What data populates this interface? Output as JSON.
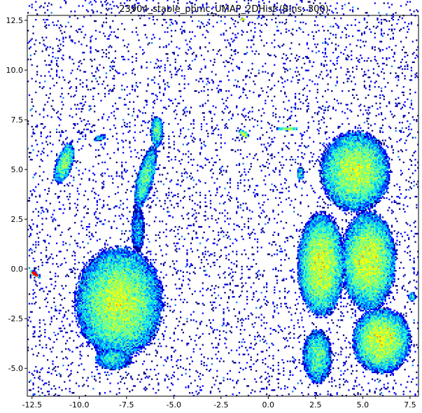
{
  "chart_data": {
    "type": "heatmap",
    "title": "23904_stable_pbmc_UMAP_2DHist (Bins: 300)",
    "xlabel": "",
    "ylabel": "",
    "xlim": [
      -12.75,
      7.95
    ],
    "ylim": [
      -6.4,
      12.75
    ],
    "x_ticks": [
      {
        "value": -12.5,
        "label": "-12.5"
      },
      {
        "value": -10.0,
        "label": "-10.0"
      },
      {
        "value": -7.5,
        "label": "-7.5"
      },
      {
        "value": -5.0,
        "label": "-5.0"
      },
      {
        "value": -2.5,
        "label": "-2.5"
      },
      {
        "value": 0.0,
        "label": "0.0"
      },
      {
        "value": 2.5,
        "label": "2.5"
      },
      {
        "value": 5.0,
        "label": "5.0"
      },
      {
        "value": 7.5,
        "label": "7.5"
      }
    ],
    "y_ticks": [
      {
        "value": 12.5,
        "label": "12.5"
      },
      {
        "value": 10.0,
        "label": "10.0"
      },
      {
        "value": 7.5,
        "label": "7.5"
      },
      {
        "value": 5.0,
        "label": "5.0"
      },
      {
        "value": 2.5,
        "label": "2.5"
      },
      {
        "value": 0.0,
        "label": "0.0"
      },
      {
        "value": -2.5,
        "label": "-2.5"
      },
      {
        "value": -5.0,
        "label": "-5.0"
      }
    ],
    "bins": 300,
    "colormap": [
      "#00007f",
      "#0000ff",
      "#007fff",
      "#00cfff",
      "#3fffbf",
      "#7fff7f",
      "#bfff3f",
      "#ffff00",
      "#ff7f00",
      "#ff0000"
    ],
    "grid": false,
    "clusters": [
      {
        "name": "small-left-island",
        "cx": -10.8,
        "cy": 5.3,
        "rx": 0.45,
        "ry": 1.1,
        "rot": -20,
        "density": 0.7
      },
      {
        "name": "tiny-left-spot",
        "cx": -8.9,
        "cy": 6.6,
        "rx": 0.35,
        "ry": 0.15,
        "rot": 20,
        "density": 0.4
      },
      {
        "name": "left-stalk-upper",
        "cx": -5.9,
        "cy": 6.9,
        "rx": 0.35,
        "ry": 0.8,
        "rot": 0,
        "density": 0.6
      },
      {
        "name": "left-stalk-mid",
        "cx": -6.5,
        "cy": 4.6,
        "rx": 0.45,
        "ry": 1.7,
        "rot": -15,
        "density": 0.6
      },
      {
        "name": "left-stalk-low",
        "cx": -6.9,
        "cy": 2.0,
        "rx": 0.35,
        "ry": 1.2,
        "rot": 0,
        "density": 0.35
      },
      {
        "name": "left-blob",
        "cx": -7.9,
        "cy": -1.7,
        "rx": 2.4,
        "ry": 2.9,
        "rot": 0,
        "density": 0.8
      },
      {
        "name": "left-blob-tail",
        "cx": -8.2,
        "cy": -4.5,
        "rx": 1.0,
        "ry": 0.6,
        "rot": 0,
        "density": 0.5
      },
      {
        "name": "edge-streak",
        "cx": -12.35,
        "cy": -0.25,
        "rx": 0.35,
        "ry": 0.1,
        "rot": -35,
        "density": 1.0
      },
      {
        "name": "center-spot",
        "cx": -1.3,
        "cy": 6.8,
        "rx": 0.3,
        "ry": 0.15,
        "rot": -30,
        "density": 0.9
      },
      {
        "name": "top-spot",
        "cx": -1.35,
        "cy": 12.55,
        "rx": 0.15,
        "ry": 0.08,
        "rot": 0,
        "density": 1.0
      },
      {
        "name": "right-top-streak",
        "cx": 1.0,
        "cy": 7.05,
        "rx": 0.6,
        "ry": 0.1,
        "rot": 0,
        "density": 0.8
      },
      {
        "name": "right-upper-large",
        "cx": 4.6,
        "cy": 4.9,
        "rx": 1.9,
        "ry": 2.1,
        "rot": 0,
        "density": 0.8
      },
      {
        "name": "right-mid-left",
        "cx": 2.8,
        "cy": 0.2,
        "rx": 1.3,
        "ry": 2.7,
        "rot": 0,
        "density": 0.85
      },
      {
        "name": "right-mid-right",
        "cx": 5.3,
        "cy": 0.4,
        "rx": 1.5,
        "ry": 2.6,
        "rot": 0,
        "density": 0.85
      },
      {
        "name": "right-lower-left",
        "cx": 2.6,
        "cy": -4.4,
        "rx": 0.8,
        "ry": 1.4,
        "rot": 0,
        "density": 0.6
      },
      {
        "name": "right-lower-right",
        "cx": 6.0,
        "cy": -3.6,
        "rx": 1.6,
        "ry": 1.7,
        "rot": 0,
        "density": 0.85
      },
      {
        "name": "right-small-spot",
        "cx": 1.7,
        "cy": 4.8,
        "rx": 0.2,
        "ry": 0.35,
        "rot": 0,
        "density": 0.5
      },
      {
        "name": "right-edge-spot",
        "cx": 7.6,
        "cy": -1.4,
        "rx": 0.2,
        "ry": 0.25,
        "rot": 0,
        "density": 0.5
      }
    ]
  }
}
